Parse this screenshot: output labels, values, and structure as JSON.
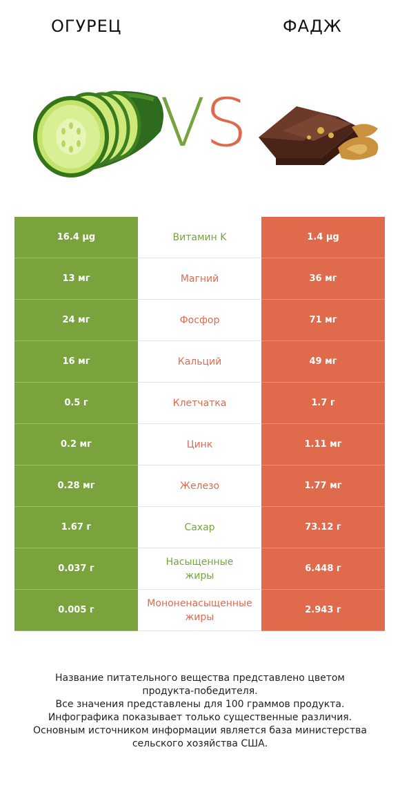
{
  "header": {
    "left_title": "ОГУРЕЦ",
    "right_title": "ФАДЖ",
    "vs_v": "V",
    "vs_s": "S"
  },
  "colors": {
    "left_winner": "#76a33b",
    "right_winner": "#e0694c"
  },
  "rows": [
    {
      "left": "16.4 µg",
      "name": "Витамин K",
      "right": "1.4 µg",
      "winner": "left"
    },
    {
      "left": "13 мг",
      "name": "Магний",
      "right": "36 мг",
      "winner": "right"
    },
    {
      "left": "24 мг",
      "name": "Фосфор",
      "right": "71 мг",
      "winner": "right"
    },
    {
      "left": "16 мг",
      "name": "Кальций",
      "right": "49 мг",
      "winner": "right"
    },
    {
      "left": "0.5 г",
      "name": "Клетчатка",
      "right": "1.7 г",
      "winner": "right"
    },
    {
      "left": "0.2 мг",
      "name": "Цинк",
      "right": "1.11 мг",
      "winner": "right"
    },
    {
      "left": "0.28 мг",
      "name": "Железо",
      "right": "1.77 мг",
      "winner": "right"
    },
    {
      "left": "1.67 г",
      "name": "Сахар",
      "right": "73.12 г",
      "winner": "left"
    },
    {
      "left": "0.037 г",
      "name": "Насыщенные\nжиры",
      "right": "6.448 г",
      "winner": "left"
    },
    {
      "left": "0.005 г",
      "name": "Мононенасыщенные\nжиры",
      "right": "2.943 г",
      "winner": "right"
    }
  ],
  "footer": {
    "line1": "Название питательного вещества представлено цветом",
    "line2": "продукта-победителя.",
    "line3": "Все значения представлены для 100 граммов продукта.",
    "line4": "Инфографика показывает только существенные различия.",
    "line5": "Основным источником информации является база министерства",
    "line6": "сельского хозяйства США."
  }
}
